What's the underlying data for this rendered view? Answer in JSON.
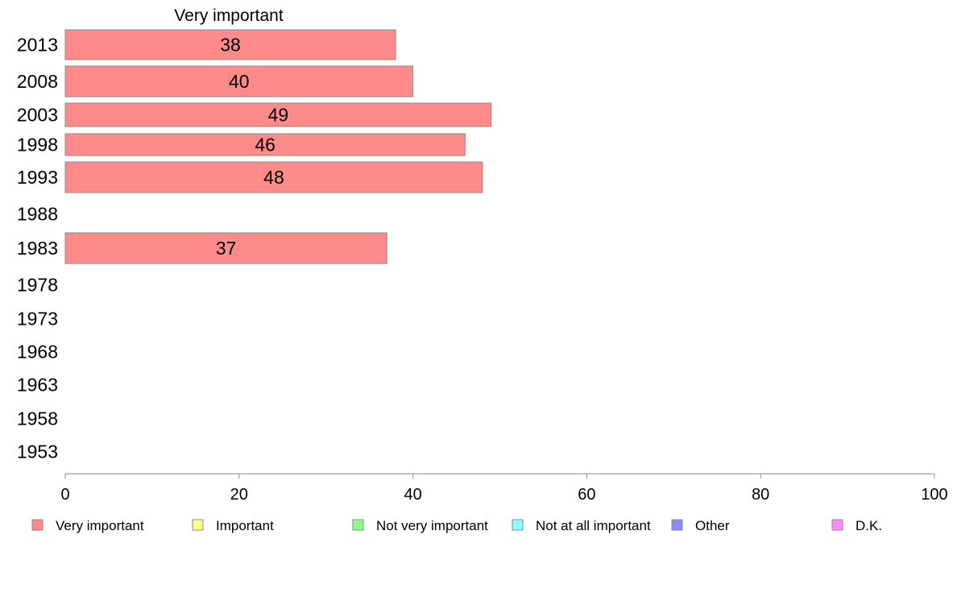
{
  "chart_data": {
    "type": "bar",
    "orientation": "horizontal",
    "title": "Very important",
    "categories": [
      "2013",
      "2008",
      "2003",
      "1998",
      "1993",
      "1988",
      "1983",
      "1978",
      "1973",
      "1968",
      "1963",
      "1958",
      "1953"
    ],
    "series": [
      {
        "name": "Very important",
        "values": [
          38,
          40,
          49,
          46,
          48,
          null,
          37,
          null,
          null,
          null,
          null,
          null,
          null
        ]
      }
    ],
    "xlim": [
      0,
      100
    ],
    "xticks": [
      0,
      20,
      40,
      60,
      80,
      100
    ],
    "grid": false,
    "legend_position": "bottom",
    "legend": [
      {
        "label": "Very important",
        "color": "#ff8a8a"
      },
      {
        "label": "Important",
        "color": "#ffff8a"
      },
      {
        "label": "Not very important",
        "color": "#8aff8a"
      },
      {
        "label": "Not at all important",
        "color": "#8affff"
      },
      {
        "label": "Other",
        "color": "#8a8aff"
      },
      {
        "label": "D.K.",
        "color": "#ff8aff"
      }
    ],
    "colors": {
      "bar_fill": "#ff8a8a",
      "bar_stroke": "#8a8a8a",
      "axis": "#8a8a8a"
    }
  }
}
